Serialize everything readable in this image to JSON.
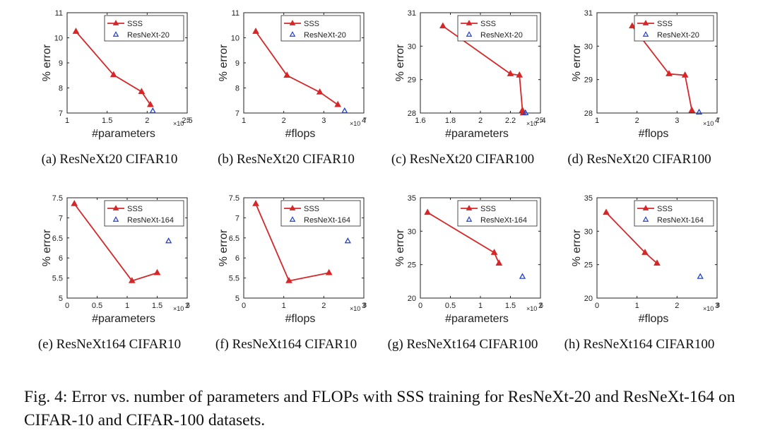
{
  "figure": {
    "caption": "Fig. 4: Error vs. number of parameters and FLOPs with SSS training for ResNeXt-20 and ResNeXt-164 on CIFAR-10 and CIFAR-100 datasets."
  },
  "colors": {
    "sss": "#d62728",
    "resnext": "#1f3fd0",
    "axis": "#222222"
  },
  "chart_data": [
    {
      "type": "line",
      "subcaption": "(a)  ResNeXt20 CIFAR10",
      "xlabel": "#parameters",
      "ylabel": "% error",
      "x_exponent": "5",
      "xlim": [
        1,
        2.5
      ],
      "ylim": [
        7,
        11
      ],
      "xticks": [
        1,
        1.5,
        2,
        2.5
      ],
      "xtick_labels": [
        "1",
        "1.5",
        "2",
        "2.5"
      ],
      "yticks": [
        7,
        8,
        9,
        10,
        11
      ],
      "ytick_labels": [
        "7",
        "8",
        "9",
        "10",
        "11"
      ],
      "legend_position": "top-right",
      "series": [
        {
          "name": "SSS",
          "marker": "filled-triangle",
          "x": [
            1.11,
            1.58,
            1.93,
            2.04
          ],
          "y": [
            10.25,
            8.52,
            7.85,
            7.33
          ]
        },
        {
          "name": "ResNeXt-20",
          "marker": "open-triangle",
          "x": [
            2.07
          ],
          "y": [
            7.08
          ]
        }
      ]
    },
    {
      "type": "line",
      "subcaption": "(b)  ResNeXt20 CIFAR10",
      "xlabel": "#flops",
      "ylabel": "% error",
      "x_exponent": "7",
      "xlim": [
        1,
        4
      ],
      "ylim": [
        7,
        11
      ],
      "xticks": [
        1,
        2,
        3,
        4
      ],
      "xtick_labels": [
        "1",
        "2",
        "3",
        "4"
      ],
      "yticks": [
        7,
        8,
        9,
        10,
        11
      ],
      "ytick_labels": [
        "7",
        "8",
        "9",
        "10",
        "11"
      ],
      "legend_position": "top-right",
      "series": [
        {
          "name": "SSS",
          "marker": "filled-triangle",
          "x": [
            1.3,
            2.08,
            2.9,
            3.35
          ],
          "y": [
            10.25,
            8.5,
            7.83,
            7.33
          ]
        },
        {
          "name": "ResNeXt-20",
          "marker": "open-triangle",
          "x": [
            3.52
          ],
          "y": [
            7.08
          ]
        }
      ]
    },
    {
      "type": "line",
      "subcaption": "(c)  ResNeXt20 CIFAR100",
      "xlabel": "#parameters",
      "ylabel": "% error",
      "x_exponent": "5",
      "xlim": [
        1.6,
        2.4
      ],
      "ylim": [
        28,
        31
      ],
      "xticks": [
        1.6,
        1.8,
        2,
        2.2,
        2.4
      ],
      "xtick_labels": [
        "1.6",
        "1.8",
        "2",
        "2.2",
        "2.4"
      ],
      "yticks": [
        28,
        29,
        30,
        31
      ],
      "ytick_labels": [
        "28",
        "29",
        "30",
        "31"
      ],
      "legend_position": "top-right",
      "series": [
        {
          "name": "SSS",
          "marker": "filled-triangle",
          "x": [
            1.75,
            2.2,
            2.26,
            2.28,
            2.285
          ],
          "y": [
            30.6,
            29.17,
            29.13,
            28.08,
            28.0
          ]
        },
        {
          "name": "ResNeXt-20",
          "marker": "open-triangle",
          "x": [
            2.3
          ],
          "y": [
            28.0
          ]
        }
      ]
    },
    {
      "type": "line",
      "subcaption": "(d)  ResNeXt20 CIFAR100",
      "xlabel": "#flops",
      "ylabel": "% error",
      "x_exponent": "7",
      "xlim": [
        1,
        4
      ],
      "ylim": [
        28,
        31
      ],
      "xticks": [
        1,
        2,
        3,
        4
      ],
      "xtick_labels": [
        "1",
        "2",
        "3",
        "4"
      ],
      "yticks": [
        28,
        29,
        30,
        31
      ],
      "ytick_labels": [
        "28",
        "29",
        "30",
        "31"
      ],
      "legend_position": "top-right",
      "series": [
        {
          "name": "SSS",
          "marker": "filled-triangle",
          "x": [
            1.88,
            2.8,
            3.2,
            3.37
          ],
          "y": [
            30.6,
            29.17,
            29.13,
            28.08
          ]
        },
        {
          "name": "ResNeXt-20",
          "marker": "open-triangle",
          "x": [
            3.55
          ],
          "y": [
            28.02
          ]
        }
      ]
    },
    {
      "type": "line",
      "subcaption": "(e)  ResNeXt164 CIFAR10",
      "xlabel": "#parameters",
      "ylabel": "% error",
      "x_exponent": "6",
      "xlim": [
        0,
        2
      ],
      "ylim": [
        5,
        7.5
      ],
      "xticks": [
        0,
        0.5,
        1,
        1.5,
        2
      ],
      "xtick_labels": [
        "0",
        "0.5",
        "1",
        "1.5",
        "2"
      ],
      "yticks": [
        5,
        5.5,
        6,
        6.5,
        7,
        7.5
      ],
      "ytick_labels": [
        "5",
        "5.5",
        "6",
        "6.5",
        "7",
        "7.5"
      ],
      "legend_position": "top-right",
      "series": [
        {
          "name": "SSS",
          "marker": "filled-triangle",
          "x": [
            0.12,
            1.08,
            1.5
          ],
          "y": [
            7.35,
            5.43,
            5.63
          ]
        },
        {
          "name": "ResNeXt-164",
          "marker": "open-triangle",
          "x": [
            1.69
          ],
          "y": [
            6.42
          ]
        }
      ]
    },
    {
      "type": "line",
      "subcaption": "(f)  ResNeXt164 CIFAR10",
      "xlabel": "#flops",
      "ylabel": "% error",
      "x_exponent": "8",
      "xlim": [
        0,
        3
      ],
      "ylim": [
        5,
        7.5
      ],
      "xticks": [
        0,
        1,
        2,
        3
      ],
      "xtick_labels": [
        "0",
        "1",
        "2",
        "3"
      ],
      "yticks": [
        5,
        5.5,
        6,
        6.5,
        7,
        7.5
      ],
      "ytick_labels": [
        "5",
        "5.5",
        "6",
        "6.5",
        "7",
        "7.5"
      ],
      "legend_position": "top-right",
      "series": [
        {
          "name": "SSS",
          "marker": "filled-triangle",
          "x": [
            0.3,
            1.13,
            2.13
          ],
          "y": [
            7.35,
            5.43,
            5.63
          ]
        },
        {
          "name": "ResNeXt-164",
          "marker": "open-triangle",
          "x": [
            2.6
          ],
          "y": [
            6.42
          ]
        }
      ]
    },
    {
      "type": "line",
      "subcaption": "(g)  ResNeXt164 CIFAR100",
      "xlabel": "#parameters",
      "ylabel": "% error",
      "x_exponent": "6",
      "xlim": [
        0,
        2
      ],
      "ylim": [
        20,
        35
      ],
      "xticks": [
        0,
        0.5,
        1,
        1.5,
        2
      ],
      "xtick_labels": [
        "0",
        "0.5",
        "1",
        "1.5",
        "2"
      ],
      "yticks": [
        20,
        25,
        30,
        35
      ],
      "ytick_labels": [
        "20",
        "25",
        "30",
        "35"
      ],
      "legend_position": "top-right",
      "series": [
        {
          "name": "SSS",
          "marker": "filled-triangle",
          "x": [
            0.12,
            1.23,
            1.31
          ],
          "y": [
            32.8,
            26.8,
            25.2
          ]
        },
        {
          "name": "ResNeXt-164",
          "marker": "open-triangle",
          "x": [
            1.7
          ],
          "y": [
            23.2
          ]
        }
      ]
    },
    {
      "type": "line",
      "subcaption": "(h)  ResNeXt164 CIFAR100",
      "xlabel": "#flops",
      "ylabel": "% error",
      "x_exponent": "8",
      "xlim": [
        0,
        3
      ],
      "ylim": [
        20,
        35
      ],
      "xticks": [
        0,
        1,
        2,
        3
      ],
      "xtick_labels": [
        "0",
        "1",
        "2",
        "3"
      ],
      "yticks": [
        20,
        25,
        30,
        35
      ],
      "ytick_labels": [
        "20",
        "25",
        "30",
        "35"
      ],
      "legend_position": "top-right",
      "series": [
        {
          "name": "SSS",
          "marker": "filled-triangle",
          "x": [
            0.23,
            1.2,
            1.5
          ],
          "y": [
            32.8,
            26.8,
            25.2
          ]
        },
        {
          "name": "ResNeXt-164",
          "marker": "open-triangle",
          "x": [
            2.58
          ],
          "y": [
            23.2
          ]
        }
      ]
    }
  ]
}
